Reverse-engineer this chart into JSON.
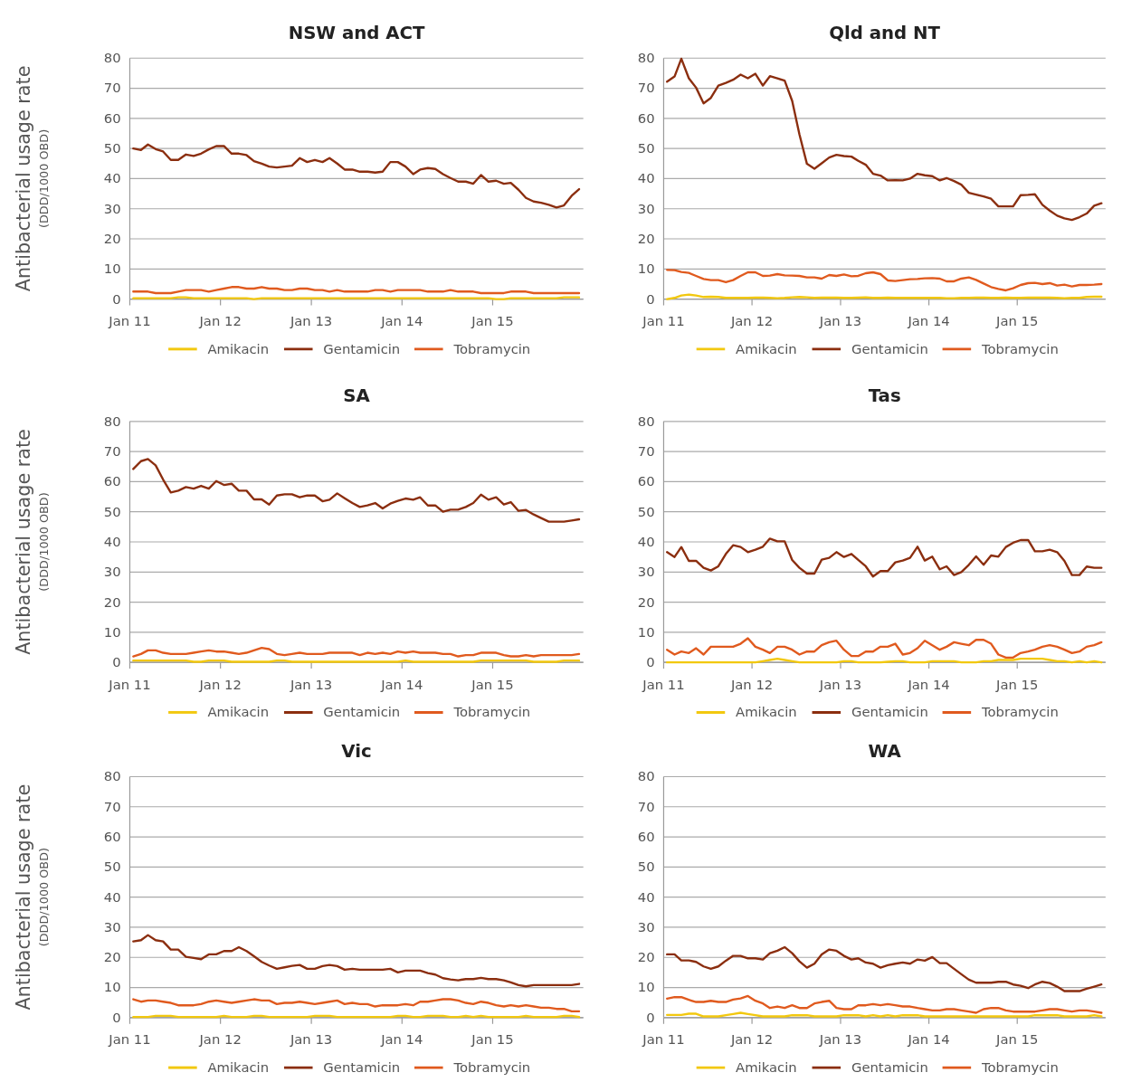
{
  "chart_data": [
    {
      "type": "line",
      "title": "NSW and ACT",
      "ylabel": "Antibacterial usage rate\n(DDD/1000 OBD)",
      "ylim": [
        0,
        80
      ],
      "yticks": [
        0,
        10,
        20,
        30,
        40,
        50,
        60,
        70,
        80
      ],
      "xlim": [
        "2011-01-01",
        "2016-01-01"
      ],
      "xticks": [
        {
          "value": "2011-01-01",
          "label": "Jan 11"
        },
        {
          "value": "2012-01-01",
          "label": "Jan 12"
        },
        {
          "value": "2013-01-01",
          "label": "Jan 13"
        },
        {
          "value": "2014-01-01",
          "label": "Jan 14"
        },
        {
          "value": "2015-01-01",
          "label": "Jan 15"
        }
      ],
      "grid": "y",
      "legend": "bottom",
      "x": [
        "2011-01-15",
        "2011-02-15",
        "2011-03-15",
        "2011-04-15",
        "2011-05-15",
        "2011-06-15",
        "2011-07-15",
        "2011-08-15",
        "2011-09-15",
        "2011-10-15",
        "2011-11-15",
        "2011-12-15",
        "2012-01-15",
        "2012-02-15",
        "2012-03-15",
        "2012-04-15",
        "2012-05-15",
        "2012-06-15",
        "2012-07-15",
        "2012-08-15",
        "2012-09-15",
        "2012-10-15",
        "2012-11-15",
        "2012-12-15",
        "2013-01-15",
        "2013-02-15",
        "2013-03-15",
        "2013-04-15",
        "2013-05-15",
        "2013-06-15",
        "2013-07-15",
        "2013-08-15",
        "2013-09-15",
        "2013-10-15",
        "2013-11-15",
        "2013-12-15",
        "2014-01-15",
        "2014-02-15",
        "2014-03-15",
        "2014-04-15",
        "2014-05-15",
        "2014-06-15",
        "2014-07-15",
        "2014-08-15",
        "2014-09-15",
        "2014-10-15",
        "2014-11-15",
        "2014-12-15",
        "2015-01-15",
        "2015-02-15",
        "2015-03-15",
        "2015-04-15",
        "2015-05-15",
        "2015-06-15",
        "2015-07-15",
        "2015-08-15",
        "2015-09-15",
        "2015-10-15",
        "2015-11-15",
        "2015-12-15"
      ],
      "series": [
        {
          "name": "Amikacin",
          "color": "#f2c80f",
          "values": [
            0.3,
            0.3,
            0.3,
            0.3,
            0.3,
            0.3,
            0.6,
            0.6,
            0.3,
            0.3,
            0.3,
            0.3,
            0.3,
            0.3,
            0.3,
            0.3,
            0,
            0.3,
            0.3,
            0.3,
            0.3,
            0.3,
            0.3,
            0.3,
            0.3,
            0.3,
            0.3,
            0.3,
            0.3,
            0.3,
            0.3,
            0.3,
            0.3,
            0.3,
            0.3,
            0.3,
            0.3,
            0.3,
            0.3,
            0.3,
            0.3,
            0.3,
            0.3,
            0.3,
            0.3,
            0.3,
            0.3,
            0.3,
            0,
            0,
            0.3,
            0.3,
            0.3,
            0.3,
            0.3,
            0.3,
            0.3,
            0.6,
            0.6,
            0.6
          ]
        },
        {
          "name": "Gentamicin",
          "color": "#8b2e0f",
          "values": [
            50,
            49.5,
            51.3,
            49.8,
            49,
            46.2,
            46.2,
            48,
            47.5,
            48.3,
            49.7,
            50.8,
            50.8,
            48.3,
            48.3,
            47.8,
            45.8,
            45,
            44,
            43.7,
            44,
            44.3,
            46.8,
            45.5,
            46.2,
            45.5,
            46.8,
            45,
            43,
            43,
            42.3,
            42.3,
            42,
            42.3,
            45.5,
            45.5,
            44,
            41.5,
            43,
            43.5,
            43.2,
            41.5,
            40.2,
            39,
            39,
            38.3,
            41.2,
            39,
            39.3,
            38.3,
            38.6,
            36.3,
            33.6,
            32.4,
            32,
            31.3,
            30.4,
            31.1,
            34.3,
            36.5
          ]
        },
        {
          "name": "Tobramycin",
          "color": "#e05a1e",
          "values": [
            2.5,
            2.5,
            2.5,
            2,
            2,
            2,
            2.5,
            3,
            3,
            3,
            2.5,
            3,
            3.5,
            4,
            4,
            3.5,
            3.5,
            4,
            3.5,
            3.5,
            3,
            3,
            3.5,
            3.5,
            3,
            3,
            2.5,
            3,
            2.5,
            2.5,
            2.5,
            2.5,
            3,
            3,
            2.5,
            3,
            3,
            3,
            3,
            2.5,
            2.5,
            2.5,
            3,
            2.5,
            2.5,
            2.5,
            2,
            2,
            2,
            2,
            2.5,
            2.5,
            2.5,
            2,
            2,
            2,
            2,
            2,
            2,
            2
          ]
        }
      ]
    },
    {
      "type": "line",
      "title": "Qld and NT",
      "ylim": [
        0,
        80
      ],
      "yticks": [
        0,
        10,
        20,
        30,
        40,
        50,
        60,
        70,
        80
      ],
      "xlim": [
        "2011-01-01",
        "2016-01-01"
      ],
      "xticks": [
        {
          "value": "2011-01-01",
          "label": "Jan 11"
        },
        {
          "value": "2012-01-01",
          "label": "Jan 12"
        },
        {
          "value": "2013-01-01",
          "label": "Jan 13"
        },
        {
          "value": "2014-01-01",
          "label": "Jan 14"
        },
        {
          "value": "2015-01-01",
          "label": "Jan 15"
        }
      ],
      "grid": "y",
      "legend": "bottom",
      "x": [
        "2011-01-15",
        "2011-02-15",
        "2011-03-15",
        "2011-04-15",
        "2011-05-15",
        "2011-06-15",
        "2011-07-15",
        "2011-08-15",
        "2011-09-15",
        "2011-10-15",
        "2011-11-15",
        "2011-12-15",
        "2012-01-15",
        "2012-02-15",
        "2012-03-15",
        "2012-04-15",
        "2012-05-15",
        "2012-06-15",
        "2012-07-15",
        "2012-08-15",
        "2012-09-15",
        "2012-10-15",
        "2012-11-15",
        "2012-12-15",
        "2013-01-15",
        "2013-02-15",
        "2013-03-15",
        "2013-04-15",
        "2013-05-15",
        "2013-06-15",
        "2013-07-15",
        "2013-08-15",
        "2013-09-15",
        "2013-10-15",
        "2013-11-15",
        "2013-12-15",
        "2014-01-15",
        "2014-02-15",
        "2014-03-15",
        "2014-04-15",
        "2014-05-15",
        "2014-06-15",
        "2014-07-15",
        "2014-08-15",
        "2014-09-15",
        "2014-10-15",
        "2014-11-15",
        "2014-12-15",
        "2015-01-15",
        "2015-02-15",
        "2015-03-15",
        "2015-04-15",
        "2015-05-15",
        "2015-06-15",
        "2015-07-15",
        "2015-08-15",
        "2015-09-15",
        "2015-10-15",
        "2015-11-15",
        "2015-12-15"
      ],
      "series": [
        {
          "name": "Amikacin",
          "color": "#f2c80f",
          "values": [
            0,
            0.4,
            1.2,
            1.5,
            1.2,
            0.7,
            0.8,
            0.7,
            0.4,
            0.4,
            0.4,
            0.4,
            0.5,
            0.5,
            0.4,
            0.3,
            0.4,
            0.6,
            0.7,
            0.6,
            0.4,
            0.5,
            0.5,
            0.5,
            0.4,
            0.4,
            0.5,
            0.6,
            0.4,
            0.4,
            0.5,
            0.4,
            0.4,
            0.4,
            0.4,
            0.4,
            0.4,
            0.4,
            0.3,
            0.3,
            0.4,
            0.4,
            0.5,
            0.5,
            0.4,
            0.4,
            0.5,
            0.4,
            0.4,
            0.5,
            0.5,
            0.5,
            0.5,
            0.4,
            0.3,
            0.4,
            0.4,
            0.7,
            0.8,
            0.8
          ]
        },
        {
          "name": "Gentamicin",
          "color": "#8b2e0f",
          "values": [
            72.2,
            73.9,
            79.8,
            73.3,
            70.2,
            65,
            66.8,
            70.9,
            71.8,
            72.8,
            74.5,
            73.3,
            74.8,
            70.9,
            74,
            73.3,
            72.5,
            65.8,
            54.7,
            44.9,
            43.3,
            45.1,
            47,
            47.9,
            47.5,
            47.3,
            45.9,
            44.6,
            41.6,
            41,
            39.4,
            39.5,
            39.4,
            40,
            41.6,
            41.1,
            40.8,
            39.4,
            40.2,
            39.2,
            38,
            35.3,
            34.7,
            34.1,
            33.3,
            30.8,
            30.8,
            30.8,
            34.5,
            34.6,
            34.8,
            31.3,
            29.4,
            27.7,
            26.8,
            26.3,
            27.2,
            28.4,
            31,
            31.8
          ]
        },
        {
          "name": "Tobramycin",
          "color": "#e05a1e",
          "values": [
            9.7,
            9.6,
            9.0,
            8.7,
            7.7,
            6.7,
            6.3,
            6.3,
            5.6,
            6.3,
            7.7,
            8.9,
            8.9,
            7.7,
            7.8,
            8.3,
            7.9,
            7.8,
            7.7,
            7.2,
            7.2,
            6.8,
            8.0,
            7.7,
            8.2,
            7.6,
            7.7,
            8.6,
            8.9,
            8.3,
            6.2,
            6.0,
            6.3,
            6.6,
            6.7,
            6.9,
            7.0,
            6.8,
            5.9,
            5.9,
            6.8,
            7.2,
            6.4,
            5.2,
            4.0,
            3.4,
            2.9,
            3.6,
            4.7,
            5.3,
            5.4,
            5.0,
            5.3,
            4.5,
            4.8,
            4.2,
            4.7,
            4.7,
            4.8,
            5.0
          ]
        }
      ]
    },
    {
      "type": "line",
      "title": "SA",
      "ylabel": "Antibacterial usage rate\n(DDD/1000 OBD)",
      "ylim": [
        0,
        80
      ],
      "yticks": [
        0,
        10,
        20,
        30,
        40,
        50,
        60,
        70,
        80
      ],
      "xlim": [
        "2011-01-01",
        "2016-01-01"
      ],
      "xticks": [
        {
          "value": "2011-01-01",
          "label": "Jan 11"
        },
        {
          "value": "2012-01-01",
          "label": "Jan 12"
        },
        {
          "value": "2013-01-01",
          "label": "Jan 13"
        },
        {
          "value": "2014-01-01",
          "label": "Jan 14"
        },
        {
          "value": "2015-01-01",
          "label": "Jan 15"
        }
      ],
      "grid": "y",
      "legend": "bottom",
      "x": [
        "2011-01-15",
        "2011-02-15",
        "2011-03-15",
        "2011-04-15",
        "2011-05-15",
        "2011-06-15",
        "2011-07-15",
        "2011-08-15",
        "2011-09-15",
        "2011-10-15",
        "2011-11-15",
        "2011-12-15",
        "2012-01-15",
        "2012-02-15",
        "2012-03-15",
        "2012-04-15",
        "2012-05-15",
        "2012-06-15",
        "2012-07-15",
        "2012-08-15",
        "2012-09-15",
        "2012-10-15",
        "2012-11-15",
        "2012-12-15",
        "2013-01-15",
        "2013-02-15",
        "2013-03-15",
        "2013-04-15",
        "2013-05-15",
        "2013-06-15",
        "2013-07-15",
        "2013-08-15",
        "2013-09-15",
        "2013-10-15",
        "2013-11-15",
        "2013-12-15",
        "2014-01-15",
        "2014-02-15",
        "2014-03-15",
        "2014-04-15",
        "2014-05-15",
        "2014-06-15",
        "2014-07-15",
        "2014-08-15",
        "2014-09-15",
        "2014-10-15",
        "2014-11-15",
        "2014-12-15",
        "2015-01-15",
        "2015-02-15",
        "2015-03-15",
        "2015-04-15",
        "2015-05-15",
        "2015-06-15",
        "2015-07-15",
        "2015-08-15",
        "2015-09-15",
        "2015-10-15",
        "2015-11-15",
        "2015-12-15"
      ],
      "series": [
        {
          "name": "Amikacin",
          "color": "#f2c80f",
          "values": [
            0.6,
            0.6,
            0.6,
            0.6,
            0.6,
            0.6,
            0.6,
            0.6,
            0.2,
            0.2,
            0.6,
            0.6,
            0.6,
            0.2,
            0.2,
            0.2,
            0.2,
            0.2,
            0.2,
            0.6,
            0.6,
            0.2,
            0.2,
            0.2,
            0.2,
            0.2,
            0.2,
            0.2,
            0.2,
            0.2,
            0.2,
            0.2,
            0.2,
            0.2,
            0.2,
            0.2,
            0.6,
            0.2,
            0.2,
            0.2,
            0.2,
            0.2,
            0.2,
            0.2,
            0.2,
            0.2,
            0.6,
            0.6,
            0.6,
            0.6,
            0.6,
            0.6,
            0.6,
            0.2,
            0.2,
            0.2,
            0.2,
            0.6,
            0.6,
            0.6
          ]
        },
        {
          "name": "Gentamicin",
          "color": "#8b2e0f",
          "values": [
            64.2,
            66.8,
            67.5,
            65.4,
            60.7,
            56.4,
            57,
            58.2,
            57.7,
            58.6,
            57.7,
            60.2,
            58.9,
            59.3,
            57,
            57,
            54.1,
            54.1,
            52.4,
            55.4,
            55.8,
            55.8,
            54.8,
            55.4,
            55.4,
            53.5,
            54,
            56.1,
            54.5,
            52.9,
            51.6,
            52.1,
            52.9,
            51.1,
            52.7,
            53.6,
            54.4,
            54,
            54.8,
            52.1,
            52.1,
            50,
            50.7,
            50.7,
            51.6,
            52.9,
            55.7,
            54,
            54.8,
            52.4,
            53.2,
            50.3,
            50.6,
            49.1,
            47.9,
            46.7,
            46.7,
            46.7,
            47.1,
            47.5
          ]
        },
        {
          "name": "Tobramycin",
          "color": "#e05a1e",
          "values": [
            2,
            2.8,
            4,
            4,
            3.2,
            2.8,
            2.8,
            2.8,
            3.2,
            3.6,
            4,
            3.6,
            3.6,
            3.2,
            2.8,
            3.2,
            4,
            4.8,
            4.4,
            2.8,
            2.4,
            2.8,
            3.2,
            2.8,
            2.8,
            2.8,
            3.2,
            3.2,
            3.2,
            3.2,
            2.4,
            3.2,
            2.8,
            3.2,
            2.8,
            3.6,
            3.2,
            3.6,
            3.2,
            3.2,
            3.2,
            2.8,
            2.8,
            2,
            2.4,
            2.4,
            3.2,
            3.2,
            3.2,
            2.4,
            2,
            2,
            2.4,
            2,
            2.4,
            2.4,
            2.4,
            2.4,
            2.4,
            2.8
          ]
        }
      ]
    },
    {
      "type": "line",
      "title": "Tas",
      "ylim": [
        0,
        80
      ],
      "yticks": [
        0,
        10,
        20,
        30,
        40,
        50,
        60,
        70,
        80
      ],
      "xlim": [
        "2011-01-01",
        "2016-01-01"
      ],
      "xticks": [
        {
          "value": "2011-01-01",
          "label": "Jan 11"
        },
        {
          "value": "2012-01-01",
          "label": "Jan 12"
        },
        {
          "value": "2013-01-01",
          "label": "Jan 13"
        },
        {
          "value": "2014-01-01",
          "label": "Jan 14"
        },
        {
          "value": "2015-01-01",
          "label": "Jan 15"
        }
      ],
      "grid": "y",
      "legend": "bottom",
      "x": [
        "2011-01-15",
        "2011-02-15",
        "2011-03-15",
        "2011-04-15",
        "2011-05-15",
        "2011-06-15",
        "2011-07-15",
        "2011-08-15",
        "2011-09-15",
        "2011-10-15",
        "2011-11-15",
        "2011-12-15",
        "2012-01-15",
        "2012-02-15",
        "2012-03-15",
        "2012-04-15",
        "2012-05-15",
        "2012-06-15",
        "2012-07-15",
        "2012-08-15",
        "2012-09-15",
        "2012-10-15",
        "2012-11-15",
        "2012-12-15",
        "2013-01-15",
        "2013-02-15",
        "2013-03-15",
        "2013-04-15",
        "2013-05-15",
        "2013-06-15",
        "2013-07-15",
        "2013-08-15",
        "2013-09-15",
        "2013-10-15",
        "2013-11-15",
        "2013-12-15",
        "2014-01-15",
        "2014-02-15",
        "2014-03-15",
        "2014-04-15",
        "2014-05-15",
        "2014-06-15",
        "2014-07-15",
        "2014-08-15",
        "2014-09-15",
        "2014-10-15",
        "2014-11-15",
        "2014-12-15",
        "2015-01-15",
        "2015-02-15",
        "2015-03-15",
        "2015-04-15",
        "2015-05-15",
        "2015-06-15",
        "2015-07-15",
        "2015-08-15",
        "2015-09-15",
        "2015-10-15",
        "2015-11-15",
        "2015-12-15"
      ],
      "series": [
        {
          "name": "Amikacin",
          "color": "#f2c80f",
          "values": [
            0,
            0,
            0,
            0,
            0,
            0,
            0,
            0,
            0,
            0,
            0,
            0,
            0,
            0.4,
            0.8,
            1.2,
            0.8,
            0.4,
            0,
            0,
            0,
            0,
            0,
            0,
            0.4,
            0.4,
            0,
            0,
            0,
            0,
            0.2,
            0.4,
            0.4,
            0,
            0,
            0,
            0.4,
            0.4,
            0.4,
            0.4,
            0,
            0,
            0,
            0.4,
            0.4,
            0.8,
            0.8,
            0.8,
            1.2,
            1.2,
            1.2,
            1.2,
            0.8,
            0.4,
            0.4,
            0,
            0.4,
            0,
            0.4,
            0
          ]
        },
        {
          "name": "Gentamicin",
          "color": "#8b2e0f",
          "values": [
            36.6,
            35,
            38.3,
            33.7,
            33.7,
            31.4,
            30.5,
            31.9,
            36,
            38.9,
            38.3,
            36.6,
            37.4,
            38.4,
            41.1,
            40.2,
            40.2,
            34,
            31.4,
            29.5,
            29.5,
            34.1,
            34.7,
            36.6,
            35,
            36,
            34,
            31.9,
            28.5,
            30.3,
            30.3,
            33.2,
            33.8,
            34.7,
            38.4,
            33.8,
            35.1,
            30.9,
            31.9,
            29,
            30,
            32.4,
            35.2,
            32.4,
            35.5,
            35.1,
            38.3,
            39.7,
            40.6,
            40.6,
            36.9,
            36.9,
            37.4,
            36.6,
            33.7,
            29,
            29,
            31.8,
            31.4,
            31.4
          ]
        },
        {
          "name": "Tobramycin",
          "color": "#e05a1e",
          "values": [
            4.2,
            2.6,
            3.6,
            3.1,
            4.7,
            2.6,
            5.2,
            5.2,
            5.2,
            5.2,
            6.2,
            8,
            5.2,
            4.2,
            3.1,
            5.2,
            5.2,
            4.2,
            2.6,
            3.6,
            3.6,
            5.7,
            6.7,
            7.2,
            4.2,
            2.1,
            2.1,
            3.6,
            3.6,
            5.2,
            5.2,
            6.2,
            2.6,
            3.1,
            4.7,
            7.2,
            5.7,
            4.2,
            5.2,
            6.7,
            6.2,
            5.7,
            7.5,
            7.5,
            6.2,
            2.6,
            1.6,
            1.6,
            3.1,
            3.6,
            4.2,
            5.2,
            5.7,
            5.2,
            4.2,
            3.1,
            3.6,
            5.2,
            5.7,
            6.7
          ]
        }
      ]
    },
    {
      "type": "line",
      "title": "Vic",
      "ylabel": "Antibacterial usage rate\n(DDD/1000 OBD)",
      "ylim": [
        0,
        80
      ],
      "yticks": [
        0,
        10,
        20,
        30,
        40,
        50,
        60,
        70,
        80
      ],
      "xlim": [
        "2011-01-01",
        "2016-01-01"
      ],
      "xticks": [
        {
          "value": "2011-01-01",
          "label": "Jan 11"
        },
        {
          "value": "2012-01-01",
          "label": "Jan 12"
        },
        {
          "value": "2013-01-01",
          "label": "Jan 13"
        },
        {
          "value": "2014-01-01",
          "label": "Jan 14"
        },
        {
          "value": "2015-01-01",
          "label": "Jan 15"
        }
      ],
      "grid": "y",
      "legend": "bottom",
      "x": [
        "2011-01-15",
        "2011-02-15",
        "2011-03-15",
        "2011-04-15",
        "2011-05-15",
        "2011-06-15",
        "2011-07-15",
        "2011-08-15",
        "2011-09-15",
        "2011-10-15",
        "2011-11-15",
        "2011-12-15",
        "2012-01-15",
        "2012-02-15",
        "2012-03-15",
        "2012-04-15",
        "2012-05-15",
        "2012-06-15",
        "2012-07-15",
        "2012-08-15",
        "2012-09-15",
        "2012-10-15",
        "2012-11-15",
        "2012-12-15",
        "2013-01-15",
        "2013-02-15",
        "2013-03-15",
        "2013-04-15",
        "2013-05-15",
        "2013-06-15",
        "2013-07-15",
        "2013-08-15",
        "2013-09-15",
        "2013-10-15",
        "2013-11-15",
        "2013-12-15",
        "2014-01-15",
        "2014-02-15",
        "2014-03-15",
        "2014-04-15",
        "2014-05-15",
        "2014-06-15",
        "2014-07-15",
        "2014-08-15",
        "2014-09-15",
        "2014-10-15",
        "2014-11-15",
        "2014-12-15",
        "2015-01-15",
        "2015-02-15",
        "2015-03-15",
        "2015-04-15",
        "2015-05-15",
        "2015-06-15",
        "2015-07-15",
        "2015-08-15",
        "2015-09-15",
        "2015-10-15",
        "2015-11-15",
        "2015-12-15"
      ],
      "series": [
        {
          "name": "Amikacin",
          "color": "#f2c80f",
          "values": [
            0.2,
            0.2,
            0.2,
            0.6,
            0.6,
            0.6,
            0.2,
            0.2,
            0.2,
            0.2,
            0.2,
            0.2,
            0.6,
            0.2,
            0.2,
            0.2,
            0.6,
            0.6,
            0.2,
            0.2,
            0.2,
            0.2,
            0.2,
            0.2,
            0.6,
            0.6,
            0.6,
            0.2,
            0.2,
            0.2,
            0.2,
            0.2,
            0.2,
            0.2,
            0.2,
            0.6,
            0.6,
            0.2,
            0.2,
            0.6,
            0.6,
            0.6,
            0.2,
            0.2,
            0.6,
            0.2,
            0.6,
            0.2,
            0.2,
            0.2,
            0.2,
            0.2,
            0.6,
            0.2,
            0.2,
            0.2,
            0.2,
            0.6,
            0.6,
            0.2
          ]
        },
        {
          "name": "Gentamicin",
          "color": "#8b2e0f",
          "values": [
            25.3,
            25.7,
            27.4,
            25.7,
            25.3,
            22.6,
            22.6,
            20.2,
            19.8,
            19.4,
            21,
            21,
            22.1,
            22.1,
            23.4,
            22.1,
            20.4,
            18.5,
            17.3,
            16.2,
            16.7,
            17.2,
            17.5,
            16.2,
            16.2,
            17.1,
            17.5,
            17.1,
            15.9,
            16.2,
            15.9,
            15.9,
            15.9,
            15.9,
            16.2,
            15,
            15.6,
            15.6,
            15.6,
            14.8,
            14.3,
            13.1,
            12.7,
            12.4,
            12.8,
            12.8,
            13.2,
            12.8,
            12.8,
            12.4,
            11.7,
            10.8,
            10.4,
            10.8,
            10.8,
            10.8,
            10.8,
            10.8,
            10.8,
            11.2
          ]
        },
        {
          "name": "Tobramycin",
          "color": "#e05a1e",
          "values": [
            6.1,
            5.3,
            5.7,
            5.7,
            5.3,
            4.9,
            4.1,
            4.1,
            4.1,
            4.5,
            5.3,
            5.7,
            5.3,
            4.9,
            5.3,
            5.7,
            6.1,
            5.7,
            5.7,
            4.5,
            4.9,
            4.9,
            5.3,
            4.9,
            4.5,
            4.9,
            5.3,
            5.7,
            4.5,
            4.9,
            4.5,
            4.5,
            3.7,
            4.1,
            4.1,
            4.1,
            4.5,
            4.1,
            5.3,
            5.3,
            5.7,
            6.1,
            6.1,
            5.7,
            4.9,
            4.5,
            5.3,
            4.9,
            4.1,
            3.7,
            4.1,
            3.7,
            4.1,
            3.7,
            3.3,
            3.3,
            2.9,
            2.9,
            2.1,
            2.1
          ]
        }
      ]
    },
    {
      "type": "line",
      "title": "WA",
      "ylim": [
        0,
        80
      ],
      "yticks": [
        0,
        10,
        20,
        30,
        40,
        50,
        60,
        70,
        80
      ],
      "xlim": [
        "2011-01-01",
        "2016-01-01"
      ],
      "xticks": [
        {
          "value": "2011-01-01",
          "label": "Jan 11"
        },
        {
          "value": "2012-01-01",
          "label": "Jan 12"
        },
        {
          "value": "2013-01-01",
          "label": "Jan 13"
        },
        {
          "value": "2014-01-01",
          "label": "Jan 14"
        },
        {
          "value": "2015-01-01",
          "label": "Jan 15"
        }
      ],
      "grid": "y",
      "legend": "bottom",
      "x": [
        "2011-01-15",
        "2011-02-15",
        "2011-03-15",
        "2011-04-15",
        "2011-05-15",
        "2011-06-15",
        "2011-07-15",
        "2011-08-15",
        "2011-09-15",
        "2011-10-15",
        "2011-11-15",
        "2011-12-15",
        "2012-01-15",
        "2012-02-15",
        "2012-03-15",
        "2012-04-15",
        "2012-05-15",
        "2012-06-15",
        "2012-07-15",
        "2012-08-15",
        "2012-09-15",
        "2012-10-15",
        "2012-11-15",
        "2012-12-15",
        "2013-01-15",
        "2013-02-15",
        "2013-03-15",
        "2013-04-15",
        "2013-05-15",
        "2013-06-15",
        "2013-07-15",
        "2013-08-15",
        "2013-09-15",
        "2013-10-15",
        "2013-11-15",
        "2013-12-15",
        "2014-01-15",
        "2014-02-15",
        "2014-03-15",
        "2014-04-15",
        "2014-05-15",
        "2014-06-15",
        "2014-07-15",
        "2014-08-15",
        "2014-09-15",
        "2014-10-15",
        "2014-11-15",
        "2014-12-15",
        "2015-01-15",
        "2015-02-15",
        "2015-03-15",
        "2015-04-15",
        "2015-05-15",
        "2015-06-15",
        "2015-07-15",
        "2015-08-15",
        "2015-09-15",
        "2015-10-15",
        "2015-11-15",
        "2015-12-15"
      ],
      "series": [
        {
          "name": "Amikacin",
          "color": "#f2c80f",
          "values": [
            0.9,
            0.9,
            0.9,
            1.3,
            1.3,
            0.4,
            0.4,
            0.4,
            0.8,
            1.2,
            1.6,
            1.2,
            0.8,
            0.4,
            0.4,
            0.4,
            0.4,
            0.8,
            0.8,
            0.8,
            0.4,
            0.4,
            0.4,
            0.4,
            0.8,
            0.8,
            0.8,
            0.4,
            0.8,
            0.4,
            0.8,
            0.4,
            0.8,
            0.8,
            0.8,
            0.4,
            0.4,
            0.4,
            0.4,
            0.4,
            0.4,
            0.4,
            0.4,
            0.4,
            0.4,
            0.4,
            0.4,
            0.4,
            0.4,
            0.4,
            0.8,
            0.8,
            0.8,
            0.8,
            0.4,
            0.4,
            0.4,
            0.4,
            0.8,
            0.4
          ]
        },
        {
          "name": "Gentamicin",
          "color": "#8b2e0f",
          "values": [
            21,
            21,
            19,
            19,
            18.5,
            17,
            16.2,
            17,
            18.9,
            20.5,
            20.5,
            19.7,
            19.7,
            19.3,
            21.4,
            22.2,
            23.4,
            21.4,
            18.7,
            16.6,
            17.9,
            21,
            22.6,
            22.2,
            20.5,
            19.3,
            19.7,
            18.3,
            17.9,
            16.6,
            17.4,
            17.9,
            18.3,
            17.9,
            19.3,
            18.9,
            20.1,
            18.1,
            18.1,
            16.2,
            14.4,
            12.6,
            11.6,
            11.6,
            11.6,
            11.9,
            11.9,
            11,
            10.6,
            9.8,
            11,
            11.9,
            11.5,
            10.3,
            8.8,
            8.8,
            8.8,
            9.6,
            10.3,
            11
          ]
        },
        {
          "name": "Tobramycin",
          "color": "#e05a1e",
          "values": [
            6.3,
            6.8,
            6.8,
            5.9,
            5.2,
            5.2,
            5.6,
            5.2,
            5.2,
            6,
            6.4,
            7.2,
            5.6,
            4.7,
            3.2,
            3.7,
            3.2,
            4.1,
            3.2,
            3.2,
            4.7,
            5.2,
            5.6,
            3.2,
            2.8,
            2.8,
            4.1,
            4.1,
            4.5,
            4.1,
            4.5,
            4.1,
            3.7,
            3.7,
            3.2,
            2.8,
            2.4,
            2.4,
            2.8,
            2.8,
            2.4,
            2,
            1.6,
            2.8,
            3.2,
            3.2,
            2.4,
            2,
            2,
            2,
            2,
            2.4,
            2.8,
            2.8,
            2.4,
            2,
            2.4,
            2.4,
            2,
            1.6
          ]
        }
      ]
    }
  ]
}
